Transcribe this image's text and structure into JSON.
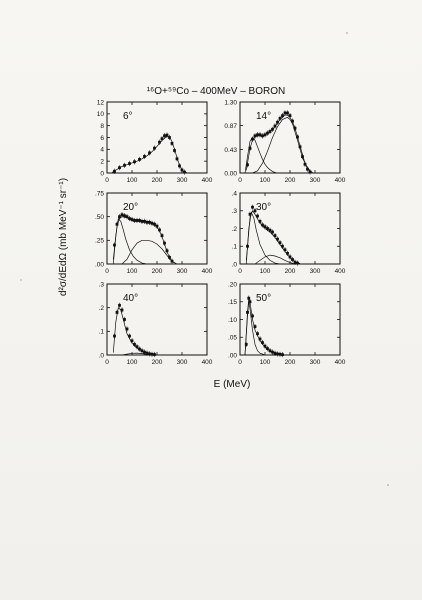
{
  "chart_title": "¹⁶O+⁵⁹Co – 400MeV – BORON",
  "xlabel": "E  (MeV)",
  "ylabel": "d²σ/dEdΩ  (mb MeV⁻¹ sr⁻¹)",
  "colors": {
    "ink": "#111111",
    "paper": "#f4f3f0"
  },
  "chart_data": [
    {
      "type": "scatter",
      "angle_label": "6°",
      "xlim": [
        0,
        400
      ],
      "ylim": [
        0,
        12
      ],
      "xticks": [
        0,
        100,
        200,
        300,
        400
      ],
      "xtick_labels": [
        "0",
        "100",
        "200",
        "300",
        "400"
      ],
      "yticks": [
        0,
        2,
        4,
        6,
        8,
        10,
        12
      ],
      "ytick_labels": [
        "0",
        "2",
        "4",
        "6",
        "8",
        "10",
        "12"
      ],
      "series": [
        {
          "kind": "points",
          "x": [
            30,
            50,
            70,
            90,
            110,
            130,
            150,
            170,
            190,
            210,
            220,
            230,
            240,
            250,
            260,
            270,
            280,
            290,
            300,
            310
          ],
          "y": [
            0.3,
            0.9,
            1.3,
            1.6,
            1.9,
            2.3,
            2.8,
            3.4,
            4.2,
            5.2,
            5.8,
            6.3,
            6.4,
            6.0,
            5.0,
            3.8,
            2.4,
            1.2,
            0.5,
            0.15
          ]
        },
        {
          "kind": "line",
          "x": [
            20,
            40,
            60,
            80,
            100,
            120,
            140,
            160,
            180,
            200,
            220,
            240,
            250,
            260,
            270,
            280,
            290,
            300,
            310,
            320
          ],
          "y": [
            0.1,
            0.6,
            1.1,
            1.4,
            1.7,
            2.0,
            2.4,
            2.9,
            3.6,
            4.5,
            5.5,
            6.2,
            6.1,
            5.3,
            4.0,
            2.6,
            1.3,
            0.5,
            0.15,
            0.05
          ]
        }
      ]
    },
    {
      "type": "scatter",
      "angle_label": "14°",
      "xlim": [
        0,
        400
      ],
      "ylim": [
        0,
        1.3
      ],
      "xticks": [
        0,
        100,
        200,
        300,
        400
      ],
      "xtick_labels": [
        "0",
        "100",
        "200",
        "300",
        "400"
      ],
      "yticks": [
        0,
        0.43,
        0.87,
        1.3
      ],
      "ytick_labels": [
        "0.00",
        "0.43",
        "0.87",
        "1.30"
      ],
      "series": [
        {
          "kind": "points",
          "x": [
            30,
            40,
            50,
            60,
            70,
            80,
            90,
            100,
            110,
            120,
            130,
            140,
            150,
            160,
            170,
            180,
            190,
            200,
            210,
            220,
            230,
            240,
            250,
            260,
            270,
            280
          ],
          "y": [
            0.15,
            0.45,
            0.62,
            0.68,
            0.7,
            0.7,
            0.68,
            0.7,
            0.73,
            0.76,
            0.8,
            0.86,
            0.93,
            1.0,
            1.05,
            1.1,
            1.1,
            1.05,
            0.95,
            0.82,
            0.66,
            0.48,
            0.3,
            0.16,
            0.07,
            0.02
          ]
        },
        {
          "kind": "line",
          "x": [
            25,
            40,
            50,
            60,
            70,
            80,
            90,
            100,
            120,
            140,
            160,
            180,
            190,
            200,
            210,
            220,
            240,
            260,
            280
          ],
          "y": [
            0.05,
            0.45,
            0.6,
            0.66,
            0.68,
            0.68,
            0.67,
            0.69,
            0.75,
            0.85,
            0.98,
            1.06,
            1.06,
            1.02,
            0.94,
            0.82,
            0.5,
            0.18,
            0.03
          ]
        },
        {
          "kind": "line",
          "x": [
            20,
            30,
            40,
            50,
            60,
            70,
            80,
            90,
            100,
            110,
            120,
            130,
            140,
            150
          ],
          "y": [
            0.0,
            0.3,
            0.58,
            0.65,
            0.6,
            0.48,
            0.36,
            0.25,
            0.16,
            0.1,
            0.06,
            0.03,
            0.01,
            0.0
          ]
        },
        {
          "kind": "line",
          "x": [
            50,
            70,
            90,
            110,
            130,
            150,
            170,
            190,
            200,
            210,
            230,
            250,
            270,
            290
          ],
          "y": [
            0.0,
            0.04,
            0.18,
            0.4,
            0.65,
            0.85,
            0.98,
            1.02,
            0.98,
            0.9,
            0.6,
            0.28,
            0.08,
            0.01
          ]
        }
      ]
    },
    {
      "type": "scatter",
      "angle_label": "20°",
      "xlim": [
        0,
        400
      ],
      "ylim": [
        0,
        0.75
      ],
      "xticks": [
        0,
        100,
        200,
        300,
        400
      ],
      "xtick_labels": [
        "0",
        "100",
        "200",
        "300",
        "400"
      ],
      "yticks": [
        0,
        0.25,
        0.5,
        0.75
      ],
      "ytick_labels": [
        ".00",
        ".25",
        ".50",
        ".75"
      ],
      "series": [
        {
          "kind": "points",
          "x": [
            30,
            40,
            50,
            60,
            70,
            80,
            90,
            100,
            110,
            120,
            130,
            140,
            150,
            160,
            170,
            180,
            190,
            200,
            210,
            220,
            230,
            240,
            250,
            260
          ],
          "y": [
            0.2,
            0.42,
            0.5,
            0.52,
            0.51,
            0.5,
            0.48,
            0.47,
            0.46,
            0.46,
            0.46,
            0.45,
            0.45,
            0.44,
            0.44,
            0.43,
            0.42,
            0.4,
            0.36,
            0.3,
            0.22,
            0.14,
            0.07,
            0.03
          ]
        },
        {
          "kind": "line",
          "x": [
            25,
            40,
            50,
            60,
            80,
            100,
            120,
            140,
            160,
            180,
            200,
            210,
            220,
            230,
            240,
            250,
            260,
            270
          ],
          "y": [
            0.05,
            0.4,
            0.48,
            0.5,
            0.49,
            0.46,
            0.45,
            0.45,
            0.44,
            0.43,
            0.39,
            0.35,
            0.29,
            0.21,
            0.13,
            0.07,
            0.03,
            0.01
          ]
        },
        {
          "kind": "line",
          "x": [
            25,
            35,
            45,
            55,
            65,
            75,
            90,
            105,
            120,
            140,
            160
          ],
          "y": [
            0.0,
            0.3,
            0.48,
            0.45,
            0.36,
            0.26,
            0.15,
            0.08,
            0.04,
            0.01,
            0.0
          ]
        },
        {
          "kind": "line",
          "x": [
            60,
            80,
            100,
            120,
            140,
            160,
            180,
            200,
            220,
            240,
            260,
            280
          ],
          "y": [
            0.0,
            0.05,
            0.15,
            0.22,
            0.25,
            0.25,
            0.24,
            0.21,
            0.16,
            0.09,
            0.03,
            0.0
          ]
        }
      ]
    },
    {
      "type": "scatter",
      "angle_label": "30°",
      "xlim": [
        0,
        400
      ],
      "ylim": [
        0,
        0.4
      ],
      "xticks": [
        0,
        100,
        200,
        300,
        400
      ],
      "xtick_labels": [
        "0",
        "100",
        "200",
        "300",
        "400"
      ],
      "yticks": [
        0,
        0.1,
        0.2,
        0.3,
        0.4
      ],
      "ytick_labels": [
        ".0",
        ".1",
        ".2",
        ".3",
        ".4"
      ],
      "series": [
        {
          "kind": "points",
          "x": [
            30,
            40,
            50,
            60,
            70,
            80,
            90,
            100,
            110,
            120,
            130,
            140,
            150,
            160,
            170,
            180,
            190,
            200,
            210,
            220,
            230
          ],
          "y": [
            0.1,
            0.28,
            0.32,
            0.3,
            0.27,
            0.24,
            0.22,
            0.21,
            0.2,
            0.19,
            0.18,
            0.16,
            0.14,
            0.12,
            0.1,
            0.08,
            0.06,
            0.04,
            0.025,
            0.01,
            0.005
          ]
        },
        {
          "kind": "line",
          "x": [
            25,
            40,
            50,
            60,
            80,
            100,
            120,
            140,
            160,
            180,
            200,
            220,
            240
          ],
          "y": [
            0.02,
            0.26,
            0.3,
            0.28,
            0.23,
            0.2,
            0.18,
            0.15,
            0.11,
            0.07,
            0.035,
            0.012,
            0.003
          ]
        },
        {
          "kind": "line",
          "x": [
            25,
            35,
            45,
            55,
            65,
            80,
            100,
            120,
            140,
            160
          ],
          "y": [
            0.0,
            0.2,
            0.29,
            0.26,
            0.19,
            0.11,
            0.05,
            0.02,
            0.005,
            0.0
          ]
        },
        {
          "kind": "line",
          "x": [
            60,
            80,
            100,
            120,
            140,
            160,
            180,
            200,
            220
          ],
          "y": [
            0.0,
            0.02,
            0.04,
            0.05,
            0.045,
            0.035,
            0.02,
            0.008,
            0.0
          ]
        }
      ]
    },
    {
      "type": "scatter",
      "angle_label": "40°",
      "xlim": [
        0,
        400
      ],
      "ylim": [
        0,
        0.3
      ],
      "xticks": [
        0,
        100,
        200,
        300,
        400
      ],
      "xtick_labels": [
        "0",
        "100",
        "200",
        "300",
        "400"
      ],
      "yticks": [
        0,
        0.1,
        0.2,
        0.3
      ],
      "ytick_labels": [
        ".0",
        ".1",
        ".2",
        ".3"
      ],
      "series": [
        {
          "kind": "points",
          "x": [
            30,
            40,
            50,
            60,
            70,
            80,
            90,
            100,
            110,
            120,
            130,
            140,
            150,
            160,
            170,
            180,
            190
          ],
          "y": [
            0.08,
            0.18,
            0.21,
            0.19,
            0.15,
            0.11,
            0.08,
            0.06,
            0.045,
            0.035,
            0.025,
            0.018,
            0.012,
            0.008,
            0.005,
            0.003,
            0.002
          ]
        },
        {
          "kind": "line",
          "x": [
            25,
            35,
            45,
            55,
            65,
            80,
            100,
            120,
            140,
            160,
            180,
            200
          ],
          "y": [
            0.01,
            0.14,
            0.2,
            0.19,
            0.15,
            0.09,
            0.05,
            0.03,
            0.015,
            0.007,
            0.003,
            0.0
          ]
        },
        {
          "kind": "line",
          "x": [
            60,
            80,
            100,
            120,
            140,
            160,
            180
          ],
          "y": [
            0.0,
            0.004,
            0.007,
            0.008,
            0.006,
            0.003,
            0.0
          ]
        }
      ]
    },
    {
      "type": "scatter",
      "angle_label": "50°",
      "xlim": [
        0,
        400
      ],
      "ylim": [
        0,
        0.2
      ],
      "xticks": [
        0,
        100,
        200,
        300,
        400
      ],
      "xtick_labels": [
        "0",
        "100",
        "200",
        "300",
        "400"
      ],
      "yticks": [
        0,
        0.05,
        0.1,
        0.15,
        0.2
      ],
      "ytick_labels": [
        ".00",
        ".05",
        ".10",
        ".15",
        ".20"
      ],
      "series": [
        {
          "kind": "points",
          "x": [
            25,
            30,
            35,
            40,
            50,
            60,
            70,
            80,
            90,
            100,
            110,
            120,
            130,
            140,
            150,
            160,
            170
          ],
          "y": [
            0.03,
            0.12,
            0.16,
            0.15,
            0.11,
            0.08,
            0.06,
            0.045,
            0.035,
            0.025,
            0.018,
            0.012,
            0.008,
            0.005,
            0.003,
            0.002,
            0.001
          ]
        },
        {
          "kind": "line",
          "x": [
            20,
            30,
            35,
            40,
            50,
            60,
            80,
            100,
            120,
            140,
            160,
            180
          ],
          "y": [
            0.0,
            0.12,
            0.16,
            0.15,
            0.1,
            0.07,
            0.04,
            0.022,
            0.011,
            0.005,
            0.002,
            0.0
          ]
        },
        {
          "kind": "line",
          "x": [
            20,
            30,
            35,
            40,
            50,
            60,
            70,
            80,
            100
          ],
          "y": [
            0.0,
            0.11,
            0.15,
            0.13,
            0.07,
            0.03,
            0.012,
            0.005,
            0.0
          ]
        }
      ]
    }
  ]
}
